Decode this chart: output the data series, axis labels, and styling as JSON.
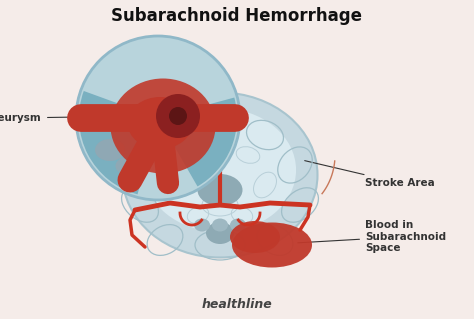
{
  "title": "Subarachnoid Hemorrhage",
  "title_fontsize": 12,
  "title_fontweight": "bold",
  "bg_color": "#f5ece9",
  "brain_color": "#c5d8e0",
  "brain_edge_color": "#a8c4ce",
  "brain_inner_color": "#daeaf0",
  "blood_red": "#c0392b",
  "blood_dark": "#8b2020",
  "vessel_red": "#cc3322",
  "annotation_color": "#333333",
  "healthline_color": "#444444",
  "zoom_bg": "#b8d4dc",
  "zoom_edge": "#90b8c8",
  "sulci_color": "#a0bec8",
  "gray_mid": "#8eaab4",
  "label_fontsize": 7.5,
  "healthline_fontsize": 9,
  "labels": {
    "aneurysm": "Aneurysm",
    "stroke_area": "Stroke Area",
    "blood_in_space": "Blood in\nSubarachnoid\nSpace",
    "healthline": "healthline"
  }
}
